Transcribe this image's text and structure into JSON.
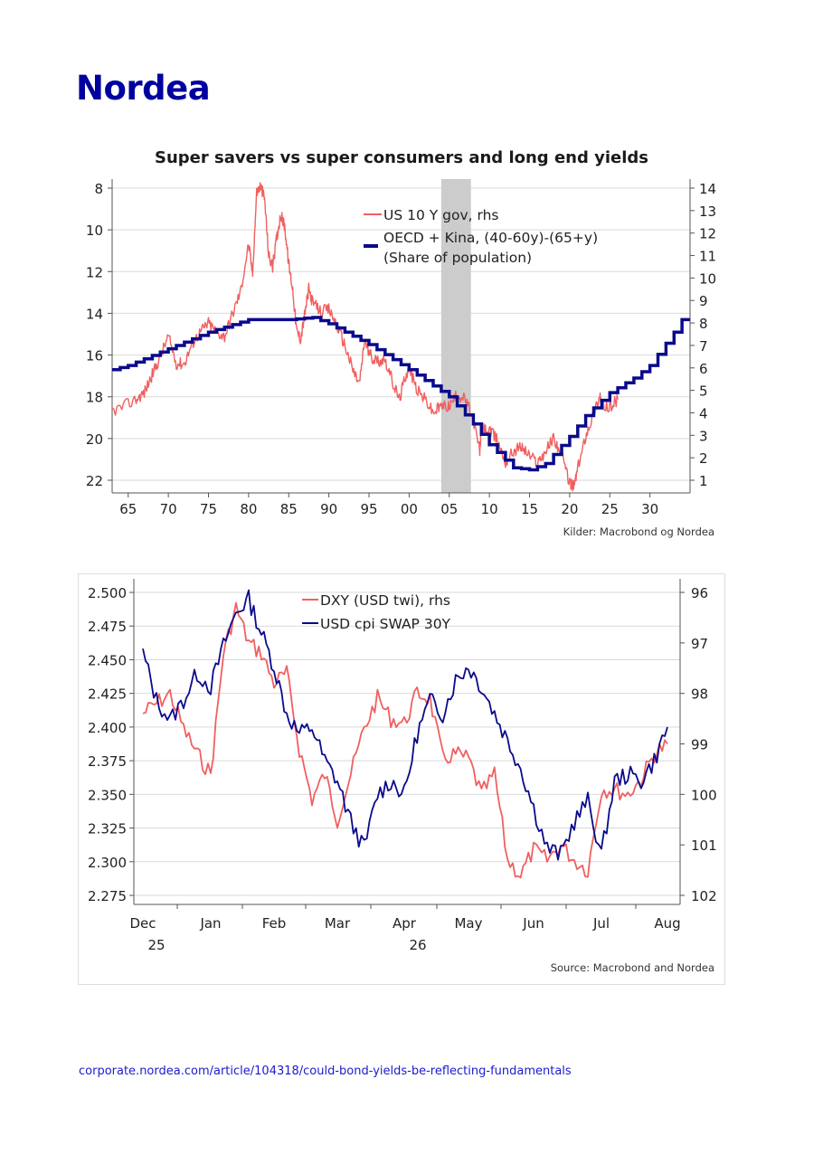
{
  "brand": {
    "logo_text": "Nordea"
  },
  "footer": {
    "url": "corporate.nordea.com/article/104318/could-bond-yields-be-reflecting-fundamentals"
  },
  "chart_data": [
    {
      "type": "line",
      "title": "Super savers vs super consumers and long end yields",
      "source": "Kilder: Macrobond og Nordea",
      "x_ticks": [
        "65",
        "70",
        "75",
        "80",
        "85",
        "90",
        "95",
        "00",
        "05",
        "10",
        "15",
        "20",
        "25",
        "30"
      ],
      "x_tick_years": [
        1965,
        1970,
        1975,
        1980,
        1985,
        1990,
        1995,
        2000,
        2005,
        2010,
        2015,
        2020,
        2025,
        2030
      ],
      "xlim": [
        1963,
        2035
      ],
      "left_axis": {
        "ticks": [
          "8",
          "10",
          "12",
          "14",
          "16",
          "18",
          "20",
          "22"
        ],
        "ylim": [
          8,
          22
        ],
        "inverted": true
      },
      "right_axis": {
        "ticks": [
          "14",
          "13",
          "12",
          "11",
          "10",
          "9",
          "8",
          "7",
          "6",
          "5",
          "4",
          "3",
          "2",
          "1"
        ],
        "ylim": [
          0.6,
          14.2
        ]
      },
      "shaded_band": {
        "from": 2004,
        "to": 2007.7,
        "color": "#cccccc"
      },
      "series": [
        {
          "name": "US 10 Y gov, rhs",
          "axis": "right",
          "color": "#f06060",
          "x": [
            1962,
            1964,
            1966,
            1967,
            1968,
            1969,
            1970,
            1971,
            1972,
            1973,
            1974,
            1975,
            1976,
            1977,
            1978,
            1979,
            1980,
            1980.5,
            1981,
            1981.5,
            1982,
            1982.5,
            1983,
            1983.5,
            1984,
            1984.5,
            1985,
            1985.5,
            1986,
            1986.5,
            1987,
            1987.5,
            1988,
            1989,
            1990,
            1991,
            1992,
            1993,
            1993.8,
            1994.5,
            1995,
            1996,
            1997,
            1998,
            1998.8,
            1999.5,
            2000,
            2001,
            2002,
            2003,
            2004,
            2005,
            2006,
            2007,
            2008,
            2008.8,
            2009,
            2010,
            2011,
            2012,
            2013,
            2014,
            2015,
            2016,
            2017,
            2018,
            2019,
            2020,
            2020.5,
            2021,
            2022,
            2023,
            2023.8,
            2024,
            2025,
            2026
          ],
          "y": [
            4,
            4.2,
            4.6,
            4.9,
            5.7,
            6.5,
            7.4,
            6.2,
            6.2,
            7.1,
            7.6,
            8,
            7.6,
            7.4,
            8.4,
            9.4,
            11.5,
            10.2,
            13.8,
            14.1,
            13.5,
            11,
            10.5,
            11.8,
            12.8,
            12.3,
            10.6,
            9.5,
            7.6,
            7.3,
            8.4,
            9.5,
            8.9,
            8.5,
            8.6,
            7.9,
            7.0,
            5.9,
            5.3,
            7.3,
            6.6,
            6.3,
            6.4,
            5.3,
            4.6,
            5.6,
            6.0,
            5.0,
            4.6,
            4.0,
            4.3,
            4.3,
            4.8,
            4.6,
            3.7,
            2.3,
            3.3,
            3.2,
            2.8,
            1.8,
            2.3,
            2.5,
            2.1,
            1.8,
            2.3,
            2.9,
            2.1,
            0.9,
            0.7,
            1.5,
            3.0,
            4.0,
            4.8,
            4.2,
            4.3,
            4.6
          ]
        },
        {
          "name": "OECD + Kina, (40-60y)-(65+y)",
          "name_line2": "(Share of population)",
          "axis": "left",
          "color": "#0a0a8c",
          "x": [
            1963,
            1965,
            1970,
            1975,
            1980,
            1985,
            1988,
            1990,
            1995,
            2000,
            2005,
            2008,
            2010,
            2013,
            2015,
            2017,
            2020,
            2022,
            2025,
            2028,
            2030,
            2033,
            2034,
            2035
          ],
          "y": [
            16.7,
            16.5,
            15.7,
            14.9,
            14.3,
            14.3,
            14.2,
            14.5,
            15.5,
            16.7,
            18.0,
            19.3,
            20.3,
            21.4,
            21.5,
            21.2,
            19.9,
            18.9,
            17.8,
            17.1,
            16.5,
            14.9,
            14.3,
            14.3
          ]
        }
      ]
    },
    {
      "type": "line",
      "title": "",
      "source": "Source: Macrobond and Nordea",
      "x_ticks": [
        "Dec",
        "Jan",
        "Feb",
        "Mar",
        "Apr",
        "May",
        "Jun",
        "Jul",
        "Aug"
      ],
      "x_ticks_year": [
        {
          "label": "25",
          "under": "Dec"
        },
        {
          "label": "26",
          "under": "Apr"
        }
      ],
      "left_axis": {
        "ticks": [
          "2.500",
          "2.475",
          "2.450",
          "2.425",
          "2.400",
          "2.375",
          "2.350",
          "2.325",
          "2.300",
          "2.275"
        ],
        "ylim": [
          2.27,
          2.51
        ]
      },
      "right_axis": {
        "ticks": [
          "96",
          "97",
          "98",
          "99",
          "100",
          "101",
          "102"
        ],
        "ylim": [
          95.8,
          102.1
        ],
        "inverted": true
      },
      "series": [
        {
          "name": "DXY (USD twi), rhs",
          "axis": "right",
          "color": "#f06060",
          "x": [
            0,
            0.2,
            0.4,
            0.6,
            0.8,
            1.0,
            1.2,
            1.4,
            1.6,
            1.8,
            2.0,
            2.2,
            2.4,
            2.6,
            2.8,
            3.0,
            3.2,
            3.4,
            3.6,
            3.8,
            4.0,
            4.2,
            4.4,
            4.6,
            4.8,
            5.0,
            5.2,
            5.4,
            5.6,
            5.8,
            6.0,
            6.2,
            6.4,
            6.6,
            6.8,
            7.0,
            7.2,
            7.4,
            7.6,
            7.8,
            8.0
          ],
          "y": [
            98.4,
            98.2,
            98.0,
            98.7,
            99.2,
            99.6,
            97.2,
            96.3,
            97.0,
            97.2,
            97.8,
            97.6,
            99.1,
            100.1,
            99.6,
            100.5,
            99.6,
            98.7,
            98.1,
            98.5,
            98.6,
            98.0,
            98.1,
            99.3,
            99.2,
            99.3,
            100.0,
            99.6,
            101.3,
            101.6,
            101.1,
            101.3,
            101.0,
            101.3,
            101.5,
            99.9,
            99.9,
            100.0,
            99.7,
            99.2,
            99.0
          ]
        },
        {
          "name": "USD cpi SWAP 30Y",
          "axis": "left",
          "color": "#0a0a8c",
          "x": [
            0,
            0.2,
            0.4,
            0.6,
            0.8,
            1.0,
            1.2,
            1.4,
            1.6,
            1.8,
            2.0,
            2.2,
            2.4,
            2.6,
            2.8,
            3.0,
            3.2,
            3.4,
            3.6,
            3.8,
            4.0,
            4.2,
            4.4,
            4.6,
            4.8,
            5.0,
            5.2,
            5.4,
            5.6,
            5.8,
            6.0,
            6.2,
            6.4,
            6.6,
            6.8,
            7.0,
            7.2,
            7.4,
            7.6,
            7.8,
            8.0
          ],
          "y": [
            2.455,
            2.42,
            2.405,
            2.42,
            2.44,
            2.43,
            2.46,
            2.485,
            2.495,
            2.47,
            2.445,
            2.41,
            2.395,
            2.4,
            2.375,
            2.36,
            2.33,
            2.31,
            2.35,
            2.36,
            2.35,
            2.395,
            2.42,
            2.41,
            2.435,
            2.445,
            2.43,
            2.41,
            2.39,
            2.37,
            2.34,
            2.31,
            2.305,
            2.33,
            2.345,
            2.305,
            2.36,
            2.365,
            2.36,
            2.375,
            2.4
          ]
        }
      ]
    }
  ]
}
